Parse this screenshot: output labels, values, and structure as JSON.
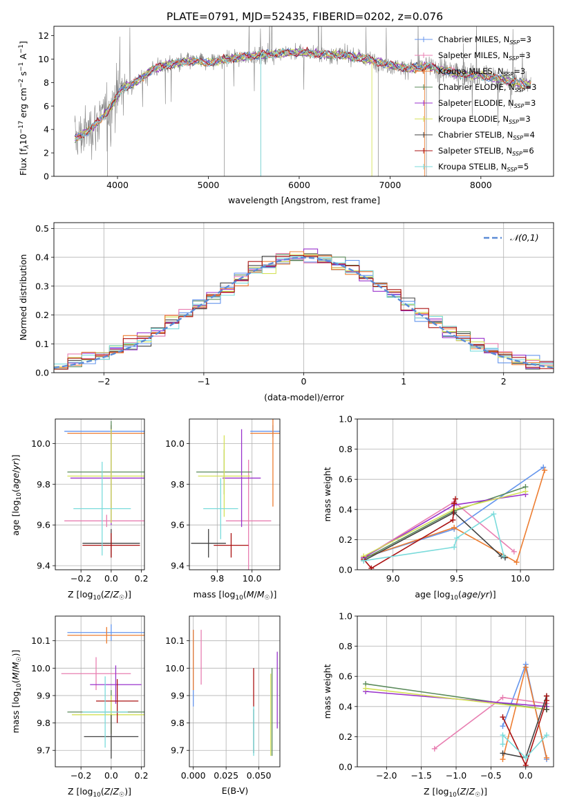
{
  "figure": {
    "title": "PLATE=0791, MJD=52435, FIBERID=0202, z=0.076"
  },
  "palette": [
    "#6495ED",
    "#E87EB1",
    "#ED7D31",
    "#5A8A5A",
    "#9932CC",
    "#D4E157",
    "#404040",
    "#AA1111",
    "#7ADBDB"
  ],
  "chart_data": [
    {
      "id": "spectrum",
      "type": "line",
      "xlabel": "wavelength [Angstrom, rest frame]",
      "ylabel": "Flux [f_λ10^-17 erg cm^-2 s^-1 A^-1]",
      "xlim": [
        3300,
        8800
      ],
      "ylim": [
        0,
        12.8
      ],
      "xticks": [
        4000,
        5000,
        6000,
        7000,
        8000
      ],
      "yticks": [
        0,
        2,
        4,
        6,
        8,
        10,
        12
      ],
      "grid": false,
      "legend_position": "top-right",
      "legend": [
        "Chabrier MILES, N_SSP=3",
        "Salpeter MILES, N_SSP=3",
        "Kroupa MILES, N_SSP=3",
        "Chabrier ELODIE, N_SSP=3",
        "Salpeter ELODIE, N_SSP=3",
        "Kroupa ELODIE, N_SSP=3",
        "Chabrier STELIB, N_SSP=4",
        "Salpeter STELIB, N_SSP=6",
        "Kroupa STELIB, N_SSP=5"
      ],
      "data_range": [
        3530,
        8550
      ],
      "continuum": [
        [
          3530,
          3.2
        ],
        [
          3700,
          4.0
        ],
        [
          3850,
          5.2
        ],
        [
          3950,
          6.2
        ],
        [
          4050,
          7.5
        ],
        [
          4200,
          8.0
        ],
        [
          4400,
          9.2
        ],
        [
          4600,
          9.6
        ],
        [
          4800,
          9.8
        ],
        [
          5000,
          9.7
        ],
        [
          5200,
          10.0
        ],
        [
          5500,
          10.3
        ],
        [
          5800,
          10.5
        ],
        [
          6000,
          10.6
        ],
        [
          6300,
          10.4
        ],
        [
          6550,
          10.3
        ],
        [
          6800,
          9.9
        ],
        [
          7000,
          9.5
        ],
        [
          7200,
          9.2
        ],
        [
          7400,
          9.4
        ],
        [
          7600,
          9.0
        ],
        [
          7800,
          8.7
        ],
        [
          8000,
          8.6
        ],
        [
          8200,
          8.3
        ],
        [
          8400,
          8.0
        ],
        [
          8550,
          7.8
        ]
      ]
    },
    {
      "id": "residuals",
      "type": "step",
      "xlabel": "(data-model)/error",
      "ylabel": "Normed distribution",
      "xlim": [
        -2.5,
        2.5
      ],
      "ylim": [
        0,
        0.52
      ],
      "xticks": [
        -2,
        -1,
        0,
        1,
        2
      ],
      "yticks": [
        0.0,
        0.1,
        0.2,
        0.3,
        0.4,
        0.5
      ],
      "grid": true,
      "legend_position": "top-right",
      "reference": {
        "label": "𝒩(0,1)",
        "mean": 0,
        "sigma": 1,
        "color": "#5B8BD6"
      },
      "bins": [
        -2.5,
        2.5,
        36
      ]
    },
    {
      "id": "age_vs_Z",
      "type": "errorbar",
      "xlabel": "Z [log10(Z/Z☉)]",
      "ylabel": "age  [log10(age/yr)]",
      "xlim": [
        -0.37,
        0.22
      ],
      "ylim": [
        9.38,
        10.12
      ],
      "xticks": [
        -0.2,
        0.0,
        0.2
      ],
      "yticks": [
        9.4,
        9.6,
        9.8,
        10.0
      ],
      "grid": true,
      "points": [
        {
          "x": 0.0,
          "y": 10.06,
          "xerr": 0.31,
          "yerr": 0.03,
          "c": 0
        },
        {
          "x": -0.03,
          "y": 9.62,
          "xerr": 0.28,
          "yerr": 0.03,
          "c": 1
        },
        {
          "x": 0.0,
          "y": 10.05,
          "xerr": 0.29,
          "yerr": 0.04,
          "c": 2
        },
        {
          "x": 0.0,
          "y": 9.86,
          "xerr": 0.29,
          "yerr": 0.25,
          "c": 3
        },
        {
          "x": 0.0,
          "y": 9.83,
          "xerr": 0.27,
          "yerr": 0.23,
          "c": 4
        },
        {
          "x": 0.0,
          "y": 9.84,
          "xerr": 0.29,
          "yerr": 0.23,
          "c": 5
        },
        {
          "x": 0.0,
          "y": 9.51,
          "xerr": 0.19,
          "yerr": 0.07,
          "c": 6
        },
        {
          "x": 0.0,
          "y": 9.5,
          "xerr": 0.19,
          "yerr": 0.06,
          "c": 7
        },
        {
          "x": -0.06,
          "y": 9.68,
          "xerr": 0.19,
          "yerr": 0.23,
          "c": 8
        }
      ]
    },
    {
      "id": "age_vs_mass",
      "type": "errorbar",
      "xlabel": "mass [log10(M/M☉)]",
      "ylabel": "",
      "xlim": [
        9.64,
        10.16
      ],
      "ylim": [
        9.38,
        10.12
      ],
      "xticks": [
        9.8,
        10.0
      ],
      "yticks": [
        9.4,
        9.6,
        9.8,
        10.0
      ],
      "grid": true,
      "points": [
        {
          "x": 10.12,
          "y": 10.06,
          "xerr": 0.13,
          "yerr": 0.03,
          "c": 0
        },
        {
          "x": 9.98,
          "y": 9.62,
          "xerr": 0.13,
          "yerr": 0.3,
          "c": 1
        },
        {
          "x": 10.12,
          "y": 10.05,
          "xerr": 0.13,
          "yerr": 0.36,
          "c": 2
        },
        {
          "x": 9.84,
          "y": 9.86,
          "xerr": 0.16,
          "yerr": 0.11,
          "c": 3
        },
        {
          "x": 9.94,
          "y": 9.83,
          "xerr": 0.11,
          "yerr": 0.24,
          "c": 4
        },
        {
          "x": 9.84,
          "y": 9.84,
          "xerr": 0.15,
          "yerr": 0.2,
          "c": 5
        },
        {
          "x": 9.75,
          "y": 9.51,
          "xerr": 0.1,
          "yerr": 0.07,
          "c": 6
        },
        {
          "x": 9.88,
          "y": 9.5,
          "xerr": 0.1,
          "yerr": 0.06,
          "c": 7
        },
        {
          "x": 9.82,
          "y": 9.68,
          "xerr": 0.1,
          "yerr": 0.15,
          "c": 8
        }
      ]
    },
    {
      "id": "weight_vs_age",
      "type": "line",
      "xlabel": "age  [log10(age/yr)]",
      "ylabel": "mass weight",
      "xlim": [
        8.72,
        10.26
      ],
      "ylim": [
        0,
        1.0
      ],
      "xticks": [
        9.0,
        9.5,
        10.0
      ],
      "yticks": [
        0.0,
        0.2,
        0.4,
        0.6,
        0.8,
        1.0
      ],
      "grid": true,
      "series": [
        {
          "c": 0,
          "x": [
            8.77,
            9.48,
            10.18
          ],
          "y": [
            0.08,
            0.27,
            0.68
          ]
        },
        {
          "c": 1,
          "x": [
            8.77,
            9.48,
            9.95
          ],
          "y": [
            0.08,
            0.45,
            0.12
          ]
        },
        {
          "c": 2,
          "x": [
            8.77,
            9.48,
            9.97,
            10.19
          ],
          "y": [
            0.08,
            0.28,
            0.05,
            0.66
          ]
        },
        {
          "c": 3,
          "x": [
            8.77,
            9.48,
            10.04
          ],
          "y": [
            0.07,
            0.39,
            0.55
          ]
        },
        {
          "c": 4,
          "x": [
            8.77,
            9.48,
            10.04
          ],
          "y": [
            0.08,
            0.43,
            0.5
          ]
        },
        {
          "c": 5,
          "x": [
            8.77,
            9.48,
            10.04
          ],
          "y": [
            0.09,
            0.4,
            0.52
          ]
        },
        {
          "c": 6,
          "x": [
            8.77,
            9.48,
            9.85,
            9.88
          ],
          "y": [
            0.06,
            0.38,
            0.09,
            0.08
          ]
        },
        {
          "c": 7,
          "x": [
            8.77,
            8.83,
            9.47,
            9.48,
            9.49,
            9.48
          ],
          "y": [
            0.07,
            0.01,
            0.33,
            0.44,
            0.47,
            0.44
          ]
        },
        {
          "c": 8,
          "x": [
            8.77,
            9.48,
            9.5,
            9.79,
            9.87
          ],
          "y": [
            0.06,
            0.15,
            0.21,
            0.37,
            0.09
          ]
        }
      ]
    },
    {
      "id": "mass_vs_Z",
      "type": "errorbar",
      "xlabel": "Z [log10(Z/Z☉)]",
      "ylabel": "mass [log10(M/M☉)]",
      "xlim": [
        -0.37,
        0.22
      ],
      "ylim": [
        9.64,
        10.19
      ],
      "xticks": [
        -0.2,
        0.0,
        0.2
      ],
      "yticks": [
        9.7,
        9.8,
        9.9,
        10.0,
        10.1
      ],
      "grid": true,
      "points": [
        {
          "x": 0.0,
          "y": 10.13,
          "xerr": 0.29,
          "yerr": 0.03,
          "c": 0
        },
        {
          "x": -0.1,
          "y": 9.98,
          "xerr": 0.23,
          "yerr": 0.06,
          "c": 1
        },
        {
          "x": -0.03,
          "y": 10.12,
          "xerr": 0.26,
          "yerr": 0.03,
          "c": 2
        },
        {
          "x": 0.0,
          "y": 9.84,
          "xerr": 0.29,
          "yerr": 0.08,
          "c": 3
        },
        {
          "x": 0.03,
          "y": 9.94,
          "xerr": 0.17,
          "yerr": 0.07,
          "c": 4
        },
        {
          "x": 0.0,
          "y": 9.83,
          "xerr": 0.26,
          "yerr": 0.07,
          "c": 5
        },
        {
          "x": 0.0,
          "y": 9.75,
          "xerr": 0.18,
          "yerr": 0.08,
          "c": 6
        },
        {
          "x": 0.04,
          "y": 9.88,
          "xerr": 0.14,
          "yerr": 0.08,
          "c": 7
        },
        {
          "x": -0.04,
          "y": 9.84,
          "xerr": 0.15,
          "yerr": 0.13,
          "c": 8
        }
      ]
    },
    {
      "id": "mass_vs_ebv",
      "type": "errorbar",
      "xlabel": "E(B-V)",
      "ylabel": "",
      "xlim": [
        -0.003,
        0.066
      ],
      "ylim": [
        9.64,
        10.19
      ],
      "xticks": [
        0.0,
        0.025,
        0.05
      ],
      "yticks": [
        9.7,
        9.8,
        9.9,
        10.0,
        10.1
      ],
      "grid": true,
      "points": [
        {
          "x": 0.0,
          "y": 10.0,
          "xerr": 0,
          "yerr": 0.14,
          "c": 0
        },
        {
          "x": 0.006,
          "y": 10.04,
          "xerr": 0,
          "yerr": 0.1,
          "c": 1
        },
        {
          "x": 0.0,
          "y": 10.03,
          "xerr": 0,
          "yerr": 0.11,
          "c": 2
        },
        {
          "x": 0.06,
          "y": 9.84,
          "xerr": 0,
          "yerr": 0.16,
          "c": 3
        },
        {
          "x": 0.064,
          "y": 9.92,
          "xerr": 0,
          "yerr": 0.14,
          "c": 4
        },
        {
          "x": 0.059,
          "y": 9.83,
          "xerr": 0,
          "yerr": 0.15,
          "c": 5
        },
        {
          "x": 0.046,
          "y": 9.77,
          "xerr": 0,
          "yerr": 0.08,
          "c": 6
        },
        {
          "x": 0.046,
          "y": 9.93,
          "xerr": 0,
          "yerr": 0.07,
          "c": 7
        },
        {
          "x": 0.046,
          "y": 9.77,
          "xerr": 0,
          "yerr": 0.09,
          "c": 8
        }
      ]
    },
    {
      "id": "weight_vs_Z",
      "type": "line",
      "xlabel": "Z [log10(Z/Z☉)]",
      "ylabel": "mass weight",
      "xlim": [
        -2.42,
        0.4
      ],
      "ylim": [
        0,
        1.0
      ],
      "xticks": [
        -2.0,
        -1.5,
        -1.0,
        -0.5,
        0.0
      ],
      "yticks": [
        0.0,
        0.2,
        0.4,
        0.6,
        0.8,
        1.0
      ],
      "grid": true,
      "series": [
        {
          "c": 0,
          "x": [
            -0.33,
            0.0,
            0.3
          ],
          "y": [
            0.27,
            0.68,
            0.05
          ]
        },
        {
          "c": 1,
          "x": [
            -1.31,
            -0.33,
            0.3
          ],
          "y": [
            0.12,
            0.46,
            0.42
          ]
        },
        {
          "c": 2,
          "x": [
            -0.33,
            0.0,
            0.3
          ],
          "y": [
            0.05,
            0.66,
            0.06
          ]
        },
        {
          "c": 3,
          "x": [
            -2.3,
            0.3
          ],
          "y": [
            0.55,
            0.38
          ]
        },
        {
          "c": 4,
          "x": [
            -2.3,
            0.3
          ],
          "y": [
            0.5,
            0.4
          ]
        },
        {
          "c": 5,
          "x": [
            -2.3,
            0.3
          ],
          "y": [
            0.52,
            0.38
          ]
        },
        {
          "c": 6,
          "x": [
            -0.33,
            0.0,
            0.3,
            0.3
          ],
          "y": [
            0.09,
            0.06,
            0.47,
            0.38
          ]
        },
        {
          "c": 7,
          "x": [
            -0.33,
            0.0,
            0.3,
            0.3
          ],
          "y": [
            0.33,
            0.01,
            0.44,
            0.47
          ]
        },
        {
          "c": 8,
          "x": [
            -0.33,
            -0.33,
            0.0,
            0.3
          ],
          "y": [
            0.15,
            0.21,
            0.06,
            0.21
          ]
        }
      ]
    }
  ]
}
